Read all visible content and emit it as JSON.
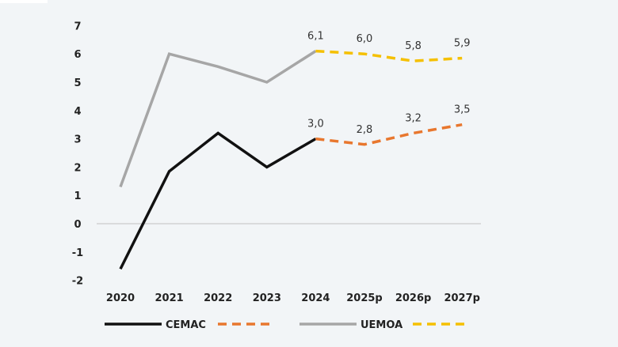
{
  "chart_data": {
    "type": "line",
    "title": "",
    "xlabel": "",
    "ylabel": "",
    "categories": [
      "2020",
      "2021",
      "2022",
      "2023",
      "2024",
      "2025p",
      "2026p",
      "2027p"
    ],
    "ylim": [
      -2,
      7
    ],
    "yticks": [
      "-2",
      "-1",
      "0",
      "1",
      "2",
      "3",
      "4",
      "5",
      "6",
      "7"
    ],
    "grid": false,
    "legend_placement": "bottom",
    "series": [
      {
        "name": "CEMAC",
        "color": "#111111",
        "forecast_color": "#e8772e",
        "values": [
          -1.6,
          1.85,
          3.2,
          2.0,
          3.0,
          2.8,
          3.2,
          3.5
        ],
        "forecast_from_index": 4,
        "labels": [
          "",
          "",
          "",
          "",
          "3,0",
          "2,8",
          "3,2",
          "3,5"
        ]
      },
      {
        "name": "UEMOA",
        "color": "#a6a6a6",
        "forecast_color": "#f5c000",
        "values": [
          1.3,
          6.0,
          5.55,
          5.0,
          6.1,
          6.0,
          5.75,
          5.85
        ],
        "forecast_from_index": 4,
        "labels": [
          "",
          "",
          "",
          "",
          "6,1",
          "6,0",
          "5,8",
          "5,9"
        ]
      }
    ]
  }
}
